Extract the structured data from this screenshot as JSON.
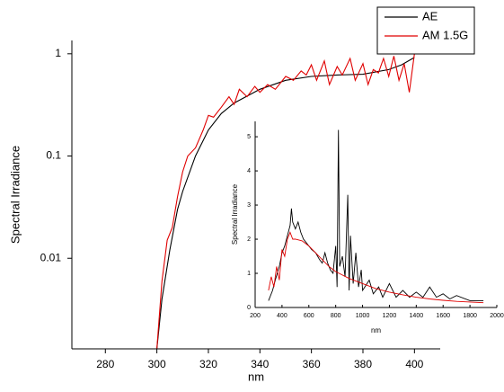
{
  "chart_data": [
    {
      "type": "line",
      "xlabel": "nm",
      "ylabel": "Spectral Irradiance",
      "log_y": true,
      "grid": false,
      "xlim": [
        267,
        410
      ],
      "xticks": [
        280,
        300,
        320,
        340,
        360,
        380,
        400
      ],
      "ylim": [
        0.0013,
        1.35
      ],
      "yticks": [
        0.01,
        0.1,
        1
      ],
      "legend": "upper right",
      "series": [
        {
          "name": "AE",
          "color": "#000000",
          "x": [
            300,
            302,
            305,
            308,
            310,
            315,
            320,
            325,
            330,
            340,
            350,
            360,
            370,
            380,
            390,
            395,
            400
          ],
          "values": [
            0.0013,
            0.004,
            0.012,
            0.03,
            0.045,
            0.1,
            0.18,
            0.26,
            0.33,
            0.45,
            0.55,
            0.6,
            0.62,
            0.63,
            0.7,
            0.78,
            0.92
          ]
        },
        {
          "name": "AM 1.5G",
          "color": "#e00000",
          "x": [
            300,
            302,
            304,
            306,
            308,
            310,
            312,
            315,
            318,
            320,
            322,
            325,
            328,
            330,
            332,
            335,
            338,
            340,
            343,
            346,
            350,
            353,
            356,
            358,
            360,
            362,
            365,
            367,
            370,
            372,
            375,
            377,
            380,
            382,
            384,
            386,
            388,
            390,
            392,
            394,
            396,
            398,
            400
          ],
          "values": [
            0.0013,
            0.006,
            0.015,
            0.02,
            0.04,
            0.07,
            0.1,
            0.12,
            0.18,
            0.25,
            0.24,
            0.3,
            0.38,
            0.32,
            0.45,
            0.38,
            0.48,
            0.42,
            0.5,
            0.45,
            0.6,
            0.55,
            0.68,
            0.62,
            0.78,
            0.55,
            0.85,
            0.5,
            0.75,
            0.62,
            0.9,
            0.55,
            0.8,
            0.5,
            0.7,
            0.65,
            0.9,
            0.6,
            0.95,
            0.55,
            0.8,
            0.42,
            1.0
          ]
        }
      ]
    },
    {
      "type": "line",
      "xlabel": "nm",
      "ylabel": "Spectral Irradiance",
      "log_y": false,
      "grid": false,
      "xlim": [
        200,
        2000
      ],
      "xticks": [
        200,
        400,
        600,
        800,
        1000,
        1200,
        1400,
        1600,
        1800,
        2000
      ],
      "ylim": [
        0,
        5.45
      ],
      "yticks": [
        0,
        1,
        2,
        3,
        4,
        5
      ],
      "series": [
        {
          "color": "#000000",
          "x": [
            300,
            330,
            350,
            380,
            400,
            420,
            440,
            460,
            470,
            480,
            500,
            520,
            540,
            560,
            580,
            600,
            620,
            650,
            680,
            700,
            720,
            740,
            760,
            780,
            800,
            810,
            820,
            830,
            850,
            870,
            890,
            900,
            910,
            930,
            950,
            970,
            990,
            1000,
            1050,
            1080,
            1120,
            1150,
            1200,
            1250,
            1300,
            1350,
            1400,
            1450,
            1500,
            1550,
            1600,
            1650,
            1700,
            1800,
            1900
          ],
          "values": [
            0.2,
            0.5,
            0.8,
            1.2,
            1.6,
            1.8,
            2.1,
            2.4,
            2.9,
            2.5,
            2.3,
            2.5,
            2.2,
            2.0,
            1.9,
            1.8,
            1.7,
            1.6,
            1.4,
            1.3,
            1.6,
            1.3,
            1.1,
            1.0,
            1.8,
            0.6,
            5.2,
            1.2,
            1.5,
            0.9,
            3.3,
            0.5,
            2.1,
            0.7,
            1.6,
            0.6,
            1.1,
            0.5,
            0.8,
            0.4,
            0.6,
            0.3,
            0.7,
            0.3,
            0.5,
            0.3,
            0.45,
            0.3,
            0.6,
            0.3,
            0.4,
            0.25,
            0.35,
            0.2,
            0.2
          ]
        },
        {
          "color": "#e00000",
          "x": [
            300,
            320,
            340,
            360,
            380,
            400,
            420,
            440,
            460,
            480,
            500,
            550,
            600,
            650,
            700,
            750,
            800,
            850,
            900,
            1000,
            1100,
            1200,
            1300,
            1400,
            1500,
            1600,
            1700,
            1800,
            1900
          ],
          "values": [
            0.5,
            0.9,
            0.6,
            1.2,
            0.8,
            1.7,
            1.5,
            2.0,
            2.2,
            2.0,
            2.0,
            1.95,
            1.8,
            1.6,
            1.4,
            1.2,
            1.05,
            0.95,
            0.85,
            0.7,
            0.55,
            0.45,
            0.37,
            0.3,
            0.25,
            0.21,
            0.18,
            0.16,
            0.14
          ]
        }
      ]
    }
  ]
}
